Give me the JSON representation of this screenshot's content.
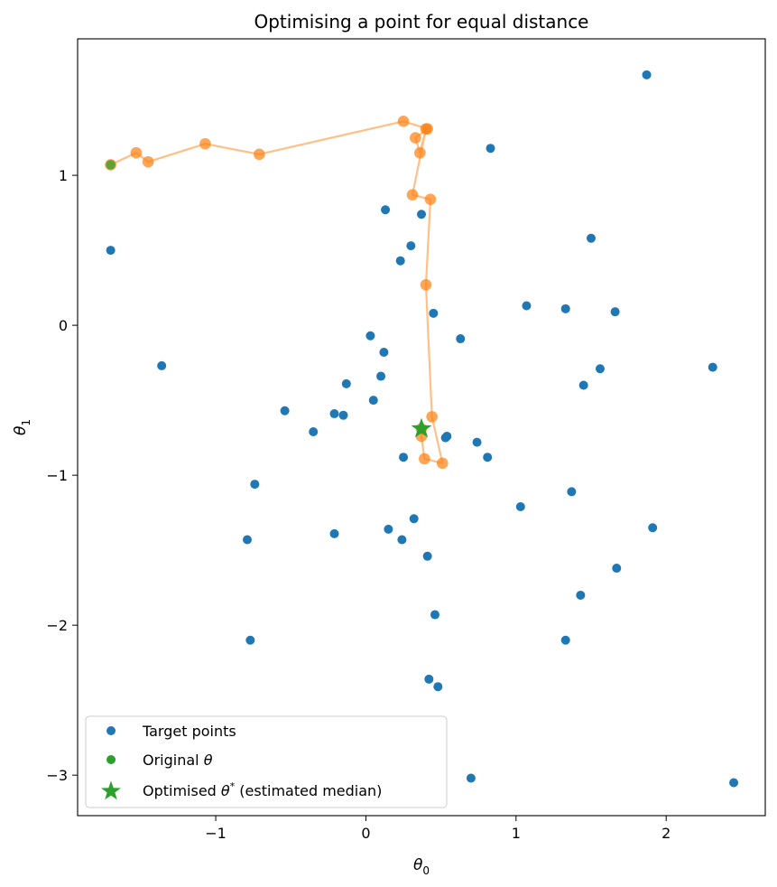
{
  "chart_data": {
    "type": "scatter",
    "title": "Optimising a point for equal distance",
    "xlabel_symbol": "θ",
    "xlabel_sub": "0",
    "ylabel_symbol": "θ",
    "ylabel_sub": "1",
    "xlim": [
      -1.92,
      2.66
    ],
    "ylim": [
      -3.27,
      1.91
    ],
    "xticks": [
      -1,
      0,
      1,
      2
    ],
    "xtick_labels": [
      "−1",
      "0",
      "1",
      "2"
    ],
    "yticks": [
      -3,
      -2,
      -1,
      0,
      1
    ],
    "ytick_labels": [
      "−3",
      "−2",
      "−1",
      "0",
      "1"
    ],
    "grid": false,
    "legend_position": "lower-left",
    "colors": {
      "target": "#1f77b4",
      "path": "#ff7f0e",
      "original": "#2ca02c",
      "optimised": "#2ca02c"
    },
    "series": [
      {
        "name": "Target points",
        "marker": "circle",
        "points": [
          [
            1.87,
            1.67
          ],
          [
            0.83,
            1.18
          ],
          [
            0.13,
            0.77
          ],
          [
            0.37,
            0.74
          ],
          [
            -1.7,
            0.5
          ],
          [
            0.3,
            0.53
          ],
          [
            1.5,
            0.58
          ],
          [
            0.23,
            0.43
          ],
          [
            1.07,
            0.13
          ],
          [
            1.33,
            0.11
          ],
          [
            1.66,
            0.09
          ],
          [
            0.45,
            0.08
          ],
          [
            0.03,
            -0.07
          ],
          [
            0.63,
            -0.09
          ],
          [
            0.12,
            -0.18
          ],
          [
            -1.36,
            -0.27
          ],
          [
            1.56,
            -0.29
          ],
          [
            2.31,
            -0.28
          ],
          [
            0.1,
            -0.34
          ],
          [
            -0.13,
            -0.39
          ],
          [
            1.45,
            -0.4
          ],
          [
            0.05,
            -0.5
          ],
          [
            -0.54,
            -0.57
          ],
          [
            -0.21,
            -0.59
          ],
          [
            -0.15,
            -0.6
          ],
          [
            -0.35,
            -0.71
          ],
          [
            0.54,
            -0.74
          ],
          [
            0.53,
            -0.75
          ],
          [
            0.74,
            -0.78
          ],
          [
            0.25,
            -0.88
          ],
          [
            0.81,
            -0.88
          ],
          [
            -0.74,
            -1.06
          ],
          [
            1.37,
            -1.11
          ],
          [
            1.03,
            -1.21
          ],
          [
            0.32,
            -1.29
          ],
          [
            0.15,
            -1.36
          ],
          [
            1.91,
            -1.35
          ],
          [
            -0.21,
            -1.39
          ],
          [
            -0.79,
            -1.43
          ],
          [
            0.24,
            -1.43
          ],
          [
            0.41,
            -1.54
          ],
          [
            1.67,
            -1.62
          ],
          [
            1.43,
            -1.8
          ],
          [
            0.46,
            -1.93
          ],
          [
            -0.77,
            -2.1
          ],
          [
            1.33,
            -2.1
          ],
          [
            0.42,
            -2.36
          ],
          [
            0.48,
            -2.41
          ],
          [
            0.7,
            -3.02
          ],
          [
            2.45,
            -3.05
          ]
        ]
      },
      {
        "name": "Original θ",
        "marker": "circle",
        "points": [
          [
            -1.7,
            1.07
          ]
        ]
      },
      {
        "name": "Optimised θ* (estimated median)",
        "marker": "star",
        "points": [
          [
            0.37,
            -0.69
          ]
        ]
      }
    ],
    "optimisation_path": [
      [
        -1.7,
        1.07
      ],
      [
        -1.53,
        1.15
      ],
      [
        -1.45,
        1.09
      ],
      [
        -1.07,
        1.21
      ],
      [
        -0.71,
        1.14
      ],
      [
        0.25,
        1.36
      ],
      [
        0.41,
        1.31
      ],
      [
        0.33,
        1.25
      ],
      [
        0.36,
        1.15
      ],
      [
        0.4,
        1.31
      ],
      [
        0.31,
        0.87
      ],
      [
        0.43,
        0.84
      ],
      [
        0.4,
        0.27
      ],
      [
        0.44,
        -0.61
      ],
      [
        0.51,
        -0.92
      ],
      [
        0.39,
        -0.89
      ],
      [
        0.37,
        -0.74
      ],
      [
        0.37,
        -0.69
      ]
    ],
    "legend": {
      "target_label": "Target points",
      "original_label_prefix": "Original ",
      "original_label_symbol": "θ",
      "optimised_label_prefix": "Optimised ",
      "optimised_label_symbol": "θ",
      "optimised_label_sup": "*",
      "optimised_label_suffix": " (estimated median)"
    }
  }
}
